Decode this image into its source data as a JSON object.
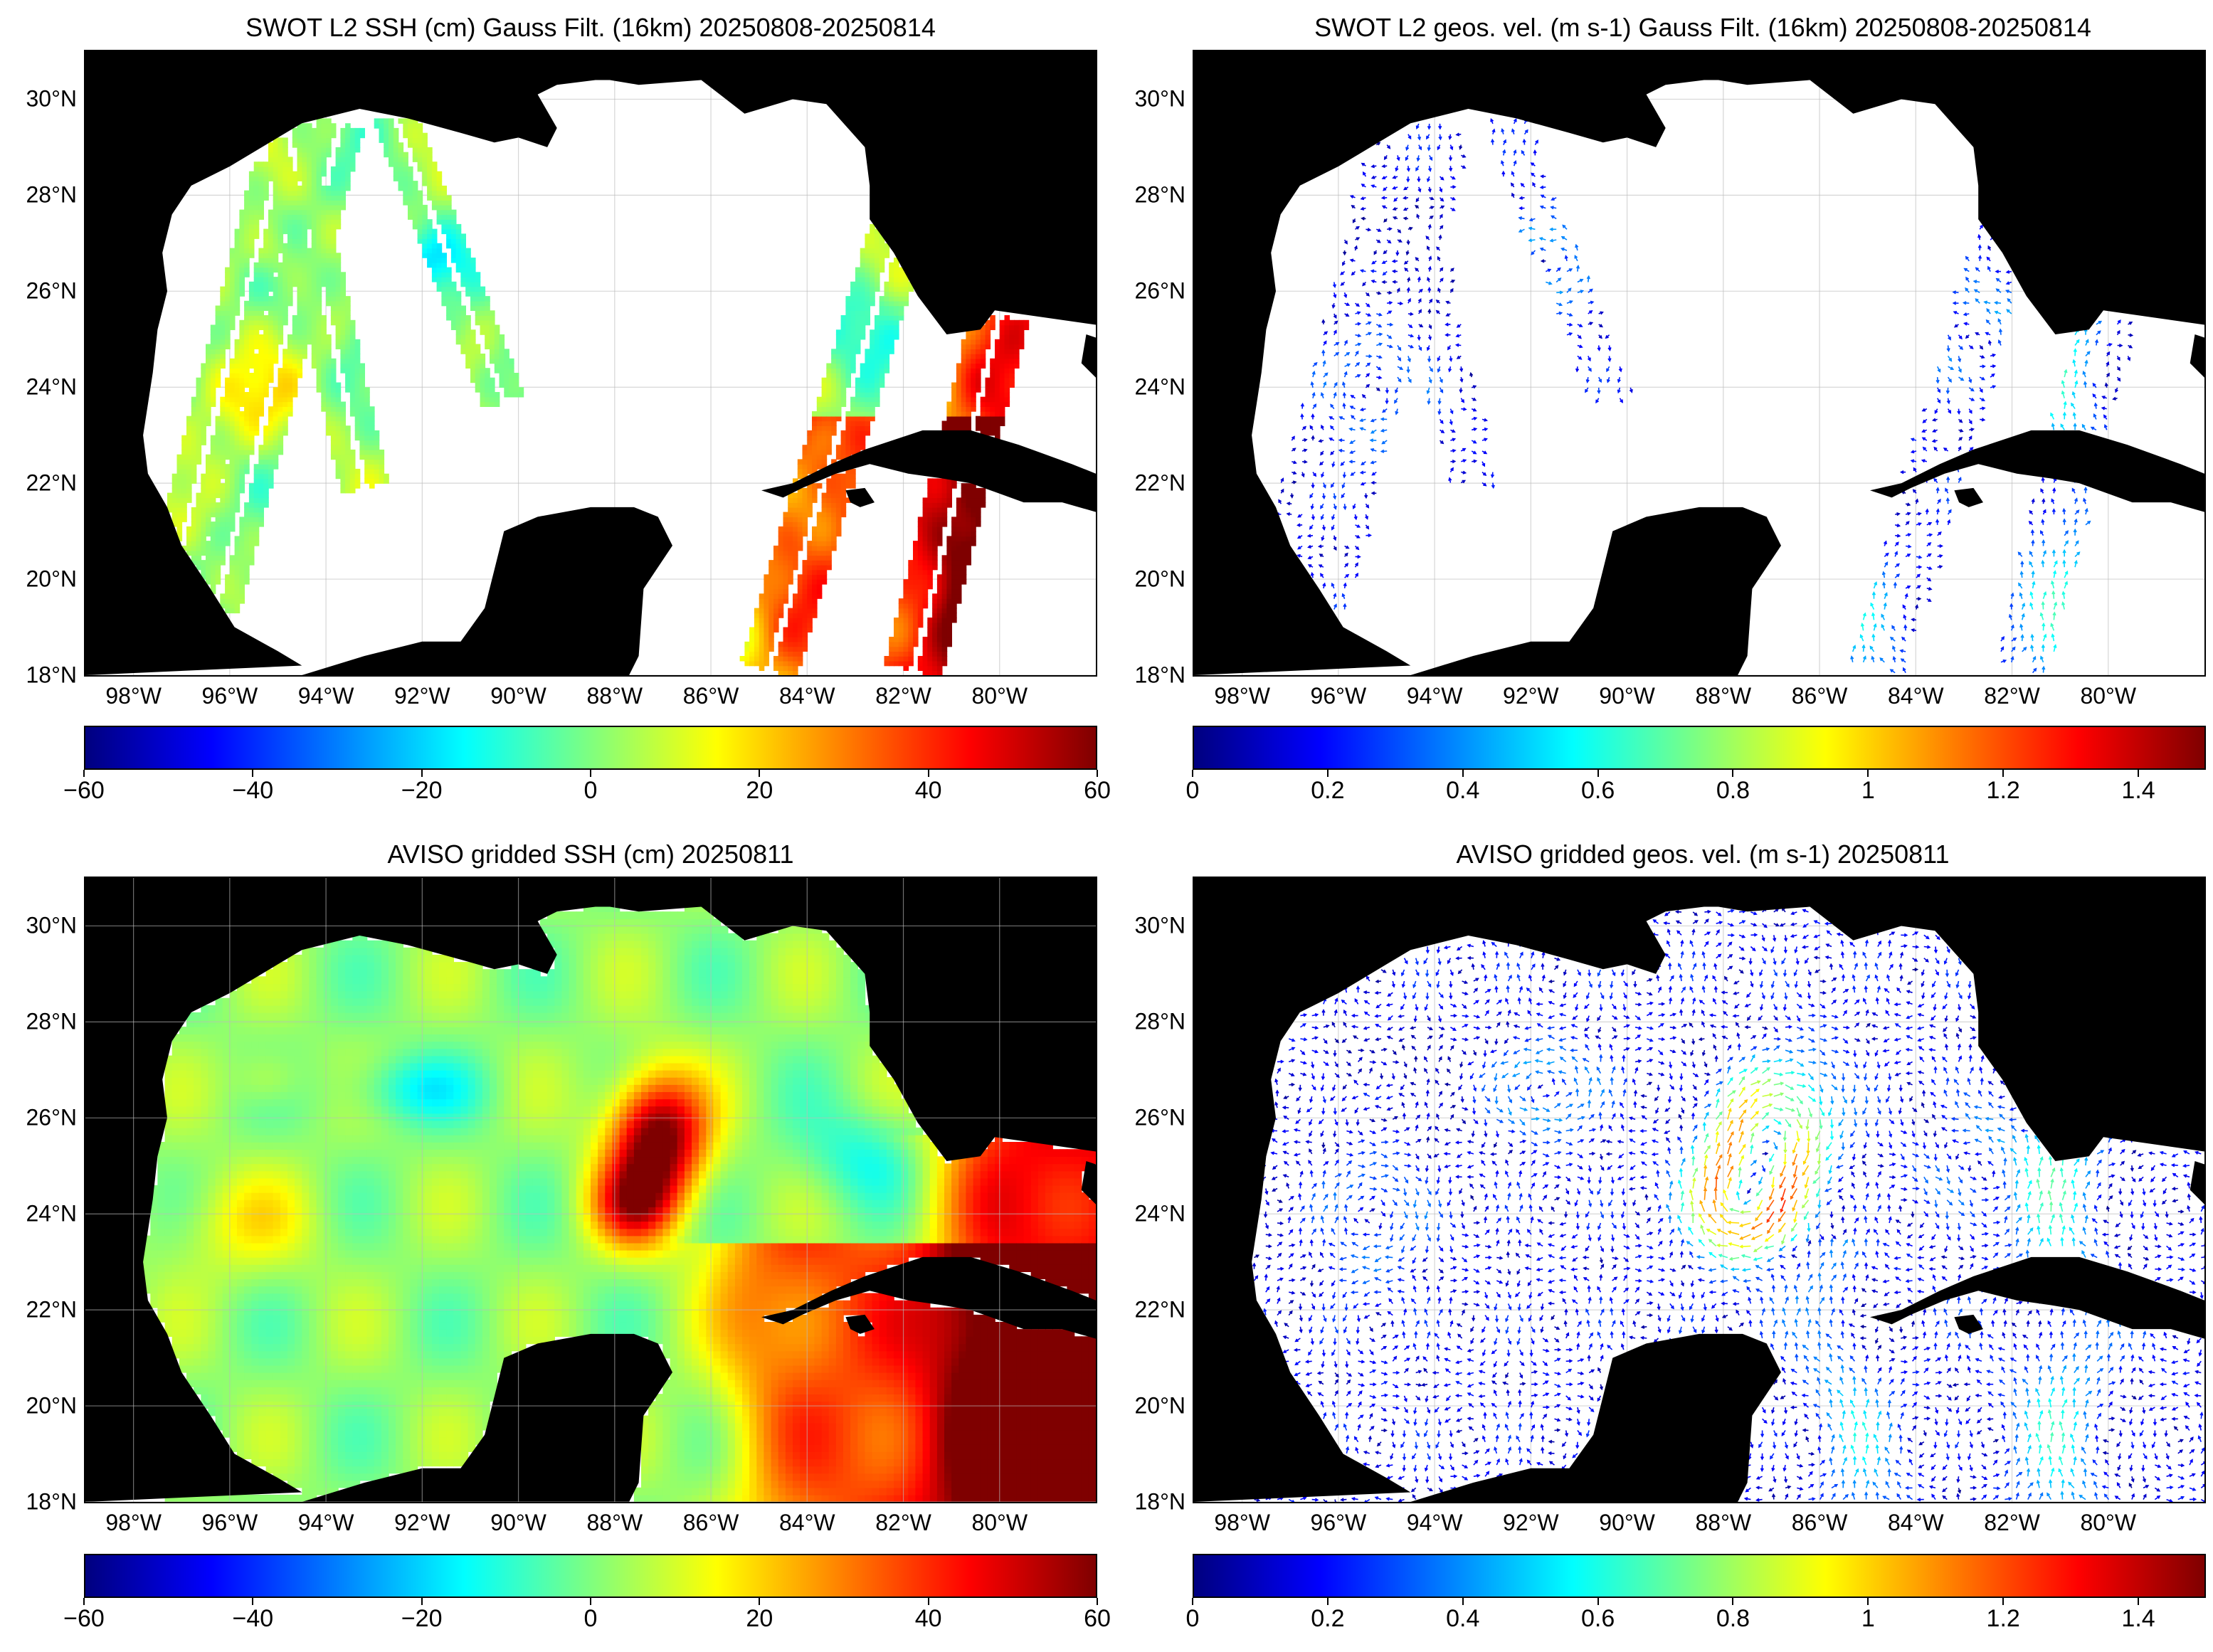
{
  "colormap": [
    "#00007f",
    "#0000ff",
    "#007fff",
    "#00ffff",
    "#7fff7f",
    "#ffff00",
    "#ff7f00",
    "#ff0000",
    "#7f0000"
  ],
  "land_color": "#000000",
  "ocean_color": "#ffffff",
  "lat_labels": [
    "30°N",
    "28°N",
    "26°N",
    "24°N",
    "22°N",
    "20°N",
    "18°N"
  ],
  "lon_labels": [
    "98°W",
    "96°W",
    "94°W",
    "92°W",
    "90°W",
    "88°W",
    "86°W",
    "84°W",
    "82°W",
    "80°W"
  ],
  "lat_values": [
    30,
    28,
    26,
    24,
    22,
    20,
    18
  ],
  "lon_values": [
    -98,
    -96,
    -94,
    -92,
    -90,
    -88,
    -86,
    -84,
    -82,
    -80
  ],
  "map_extent": {
    "lon": [
      -99,
      -78
    ],
    "lat": [
      18,
      31
    ]
  },
  "panels": [
    {
      "id": "swot-ssh",
      "title": "SWOT L2 SSH (cm) Gauss Filt. (16km) 20250808-20250814",
      "variable": "SSH",
      "units": "cm",
      "colorbar_ticks": [
        "-60",
        "-40",
        "-20",
        "0",
        "20",
        "40",
        "60"
      ],
      "colorbar_range": [
        -60,
        60
      ]
    },
    {
      "id": "swot-vel",
      "title": "SWOT L2 geos. vel. (m s-1) Gauss Filt. (16km) 20250808-20250814",
      "variable": "geostrophic velocity",
      "units": "m s-1",
      "colorbar_ticks": [
        "0",
        "0.2",
        "0.4",
        "0.6",
        "0.8",
        "1",
        "1.2",
        "1.4"
      ],
      "colorbar_range": [
        0,
        1.5
      ]
    },
    {
      "id": "aviso-ssh",
      "title": "AVISO gridded SSH (cm) 20250811",
      "variable": "SSH",
      "units": "cm",
      "colorbar_ticks": [
        "-60",
        "-40",
        "-20",
        "0",
        "20",
        "40",
        "60"
      ],
      "colorbar_range": [
        -60,
        60
      ]
    },
    {
      "id": "aviso-vel",
      "title": "AVISO gridded geos. vel. (m s-1)  20250811",
      "variable": "geostrophic velocity",
      "units": "m s-1",
      "colorbar_ticks": [
        "0",
        "0.2",
        "0.4",
        "0.6",
        "0.8",
        "1",
        "1.2",
        "1.4"
      ],
      "colorbar_range": [
        0,
        1.5
      ]
    }
  ]
}
